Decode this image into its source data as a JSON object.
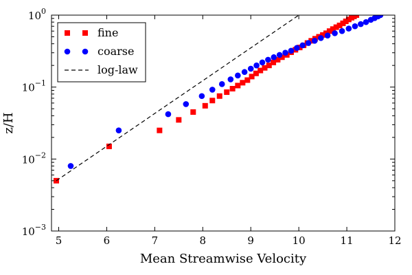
{
  "chart_data": {
    "type": "scatter",
    "title": "",
    "xlabel": "Mean Streamwise Velocity",
    "ylabel": "z/H",
    "xlim": [
      4.85,
      12
    ],
    "ylim": [
      0.001,
      1
    ],
    "yscale": "log",
    "grid": false,
    "legend_position": "top-left",
    "xticks": [
      "5",
      "6",
      "7",
      "8",
      "9",
      "10",
      "11",
      "12"
    ],
    "yticks": [
      {
        "value": 0.001,
        "base": "10",
        "exp": "−3"
      },
      {
        "value": 0.01,
        "base": "10",
        "exp": "−2"
      },
      {
        "value": 0.1,
        "base": "10",
        "exp": "−1"
      },
      {
        "value": 1,
        "base": "10",
        "exp": "0"
      }
    ],
    "series": [
      {
        "name": "fine",
        "marker": "square",
        "color": "#ff0000",
        "x": [
          4.95,
          6.05,
          7.1,
          7.5,
          7.8,
          8.05,
          8.2,
          8.35,
          8.5,
          8.62,
          8.73,
          8.83,
          8.93,
          9.02,
          9.11,
          9.2,
          9.29,
          9.38,
          9.47,
          9.56,
          9.65,
          9.75,
          9.84,
          9.93,
          10.02,
          10.1,
          10.18,
          10.26,
          10.34,
          10.42,
          10.5,
          10.57,
          10.64,
          10.71,
          10.78,
          10.85,
          10.92,
          10.98,
          11.04,
          11.1,
          11.15,
          11.2
        ],
        "y": [
          0.005,
          0.015,
          0.025,
          0.035,
          0.045,
          0.055,
          0.065,
          0.075,
          0.085,
          0.095,
          0.105,
          0.115,
          0.125,
          0.14,
          0.155,
          0.17,
          0.185,
          0.2,
          0.22,
          0.24,
          0.26,
          0.28,
          0.305,
          0.33,
          0.355,
          0.38,
          0.41,
          0.44,
          0.47,
          0.5,
          0.53,
          0.56,
          0.6,
          0.64,
          0.68,
          0.72,
          0.77,
          0.82,
          0.87,
          0.92,
          0.96,
          1.0
        ]
      },
      {
        "name": "coarse",
        "marker": "circle",
        "color": "#0000ff",
        "x": [
          5.25,
          6.25,
          7.28,
          7.65,
          7.98,
          8.2,
          8.4,
          8.58,
          8.73,
          8.87,
          9.0,
          9.12,
          9.24,
          9.36,
          9.48,
          9.6,
          9.72,
          9.84,
          9.96,
          10.08,
          10.2,
          10.33,
          10.46,
          10.6,
          10.75,
          10.9,
          11.04,
          11.17,
          11.29,
          11.4,
          11.5,
          11.58,
          11.65,
          11.7
        ],
        "y": [
          0.008,
          0.025,
          0.042,
          0.058,
          0.075,
          0.092,
          0.11,
          0.128,
          0.145,
          0.162,
          0.18,
          0.2,
          0.22,
          0.24,
          0.26,
          0.28,
          0.3,
          0.32,
          0.35,
          0.38,
          0.41,
          0.44,
          0.48,
          0.52,
          0.56,
          0.6,
          0.65,
          0.7,
          0.75,
          0.8,
          0.86,
          0.91,
          0.96,
          1.0
        ]
      },
      {
        "name": "log-law",
        "marker": "dashed-line",
        "color": "#000000",
        "x": [
          4.95,
          10.0
        ],
        "y": [
          0.005,
          1.0
        ]
      }
    ]
  }
}
